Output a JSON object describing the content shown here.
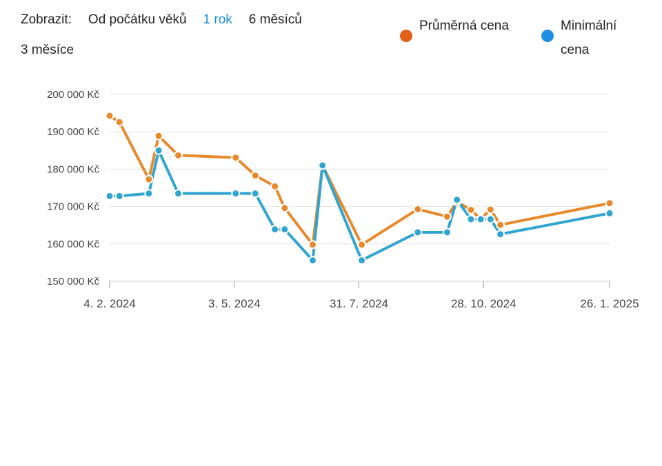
{
  "filters": {
    "label": "Zobrazit:",
    "options": [
      "Od počátku věků",
      "1 rok",
      "6 měsíců",
      "3 měsíce"
    ],
    "active": "1 rok"
  },
  "legend": {
    "avg": "Průměrná cena",
    "min": "Minimální cena"
  },
  "colors": {
    "avg": "#e8892b",
    "avg_legend": "#e0601a",
    "min": "#2fa5cf",
    "min_legend": "#1e8fe0",
    "active_filter": "#1e8fd6",
    "grid": "#e3e3e3"
  },
  "chart_data": {
    "type": "line",
    "y_tick_labels": [
      "150 000 Kč",
      "160 000 Kč",
      "170 000 Kč",
      "180 000 Kč",
      "190 000 Kč",
      "200 000 Kč"
    ],
    "y_ticks": [
      150000,
      160000,
      170000,
      180000,
      190000,
      200000
    ],
    "ylim": [
      150000,
      200000
    ],
    "x_tick_labels": [
      "4. 2. 2024",
      "3. 5. 2024",
      "31. 7. 2024",
      "28. 10. 2024",
      "26. 1. 2025"
    ],
    "x_ticks": [
      "2024-02-04",
      "2024-05-03",
      "2024-07-31",
      "2024-10-28",
      "2025-01-26"
    ],
    "xlim": [
      "2024-02-04",
      "2025-01-26"
    ],
    "grid": true,
    "series": [
      {
        "name": "Průměrná cena",
        "key": "avg",
        "points": [
          {
            "x": "2024-02-04",
            "y": 194300
          },
          {
            "x": "2024-02-11",
            "y": 192600
          },
          {
            "x": "2024-03-03",
            "y": 177300
          },
          {
            "x": "2024-03-10",
            "y": 188900
          },
          {
            "x": "2024-03-24",
            "y": 183700
          },
          {
            "x": "2024-05-04",
            "y": 183100
          },
          {
            "x": "2024-05-18",
            "y": 178300
          },
          {
            "x": "2024-06-01",
            "y": 175400
          },
          {
            "x": "2024-06-08",
            "y": 169600
          },
          {
            "x": "2024-06-28",
            "y": 159800
          },
          {
            "x": "2024-07-05",
            "y": 181000
          },
          {
            "x": "2024-08-02",
            "y": 159800
          },
          {
            "x": "2024-09-11",
            "y": 169300
          },
          {
            "x": "2024-10-02",
            "y": 167300
          },
          {
            "x": "2024-10-09",
            "y": 171300
          },
          {
            "x": "2024-10-19",
            "y": 169100
          },
          {
            "x": "2024-10-26",
            "y": 166700
          },
          {
            "x": "2024-11-02",
            "y": 169200
          },
          {
            "x": "2024-11-09",
            "y": 165100
          },
          {
            "x": "2025-01-26",
            "y": 170900
          }
        ]
      },
      {
        "name": "Minimální cena",
        "key": "min",
        "points": [
          {
            "x": "2024-02-04",
            "y": 172800
          },
          {
            "x": "2024-02-11",
            "y": 172800
          },
          {
            "x": "2024-03-03",
            "y": 173500
          },
          {
            "x": "2024-03-10",
            "y": 185000
          },
          {
            "x": "2024-03-24",
            "y": 173500
          },
          {
            "x": "2024-05-04",
            "y": 173500
          },
          {
            "x": "2024-05-18",
            "y": 173500
          },
          {
            "x": "2024-06-01",
            "y": 163900
          },
          {
            "x": "2024-06-08",
            "y": 163900
          },
          {
            "x": "2024-06-28",
            "y": 155600
          },
          {
            "x": "2024-07-05",
            "y": 181000
          },
          {
            "x": "2024-08-02",
            "y": 155600
          },
          {
            "x": "2024-09-11",
            "y": 163100
          },
          {
            "x": "2024-10-02",
            "y": 163100
          },
          {
            "x": "2024-10-09",
            "y": 171800
          },
          {
            "x": "2024-10-19",
            "y": 166600
          },
          {
            "x": "2024-10-26",
            "y": 166600
          },
          {
            "x": "2024-11-02",
            "y": 166600
          },
          {
            "x": "2024-11-09",
            "y": 162600
          },
          {
            "x": "2025-01-26",
            "y": 168200
          }
        ]
      }
    ]
  }
}
